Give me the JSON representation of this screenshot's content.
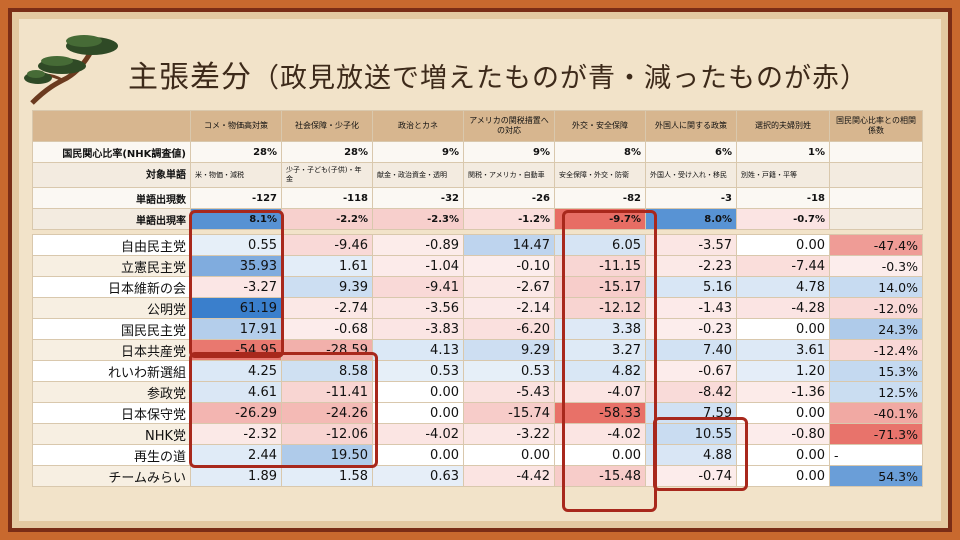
{
  "title": {
    "main": "主張差分",
    "sub": "（政見放送で増えたものが青・減ったものが赤）"
  },
  "colors": {
    "blue": "#3a7fcc",
    "red": "#e76d64",
    "frame": "#a8281c"
  },
  "headers": [
    "コメ・物価高対策",
    "社会保障・少子化",
    "政治とカネ",
    "アメリカの関税措置への対応",
    "外交・安全保障",
    "外国人に関する政策",
    "選択的夫婦別姓",
    "国民関心比率との相関係数"
  ],
  "info_rows": [
    {
      "label": "国民関心比率(NHK調査値)",
      "values": [
        "28%",
        "28%",
        "9%",
        "9%",
        "8%",
        "6%",
        "1%",
        ""
      ]
    },
    {
      "label": "対象単語",
      "values": [
        "米・物価・減税",
        "少子・子ども(子供)・年金",
        "献金・政治資金・透明",
        "関税・アメリカ・自動車",
        "安全保障・外交・防衛",
        "外国人・受け入れ・移民",
        "別姓・戸籍・平等",
        ""
      ]
    },
    {
      "label": "単語出現数",
      "values": [
        "-127",
        "-118",
        "-32",
        "-26",
        "-82",
        "-3",
        "-18",
        ""
      ]
    },
    {
      "label": "単語出現率",
      "values": [
        "8.1%",
        "-2.2%",
        "-2.3%",
        "-1.2%",
        "-9.7%",
        "8.0%",
        "-0.7%",
        ""
      ]
    }
  ],
  "parties": [
    {
      "name": "自由民主党",
      "values": [
        "0.55",
        "-9.46",
        "-0.89",
        "14.47",
        "6.05",
        "-3.57",
        "0.00"
      ],
      "coef": "-47.4%"
    },
    {
      "name": "立憲民主党",
      "values": [
        "35.93",
        "1.61",
        "-1.04",
        "-0.10",
        "-11.15",
        "-2.23",
        "-7.44"
      ],
      "coef": "-0.3%"
    },
    {
      "name": "日本維新の会",
      "values": [
        "-3.27",
        "9.39",
        "-9.41",
        "-2.67",
        "-15.17",
        "5.16",
        "4.78"
      ],
      "coef": "14.0%"
    },
    {
      "name": "公明党",
      "values": [
        "61.19",
        "-2.74",
        "-3.56",
        "-2.14",
        "-12.12",
        "-1.43",
        "-4.28"
      ],
      "coef": "-12.0%"
    },
    {
      "name": "国民民主党",
      "values": [
        "17.91",
        "-0.68",
        "-3.83",
        "-6.20",
        "3.38",
        "-0.23",
        "0.00"
      ],
      "coef": "24.3%"
    },
    {
      "name": "日本共産党",
      "values": [
        "-54.95",
        "-28.59",
        "4.13",
        "9.29",
        "3.27",
        "7.40",
        "3.61"
      ],
      "coef": "-12.4%"
    },
    {
      "name": "れいわ新選組",
      "values": [
        "4.25",
        "8.58",
        "0.53",
        "0.53",
        "4.82",
        "-0.67",
        "1.20"
      ],
      "coef": "15.3%"
    },
    {
      "name": "参政党",
      "values": [
        "4.61",
        "-11.41",
        "0.00",
        "-5.43",
        "-4.07",
        "-8.42",
        "-1.36"
      ],
      "coef": "12.5%"
    },
    {
      "name": "日本保守党",
      "values": [
        "-26.29",
        "-24.26",
        "0.00",
        "-15.74",
        "-58.33",
        "7.59",
        "0.00"
      ],
      "coef": "-40.1%"
    },
    {
      "name": "NHK党",
      "values": [
        "-2.32",
        "-12.06",
        "-4.02",
        "-3.22",
        "-4.02",
        "10.55",
        "-0.80"
      ],
      "coef": "-71.3%"
    },
    {
      "name": "再生の道",
      "values": [
        "2.44",
        "19.50",
        "0.00",
        "0.00",
        "0.00",
        "4.88",
        "0.00"
      ],
      "coef": "-"
    },
    {
      "name": "チームみらい",
      "values": [
        "1.89",
        "1.58",
        "0.63",
        "-4.42",
        "-15.48",
        "-0.74",
        "0.00"
      ],
      "coef": "54.3%"
    }
  ],
  "icons": {
    "decoration": "pine-tree-icon"
  }
}
